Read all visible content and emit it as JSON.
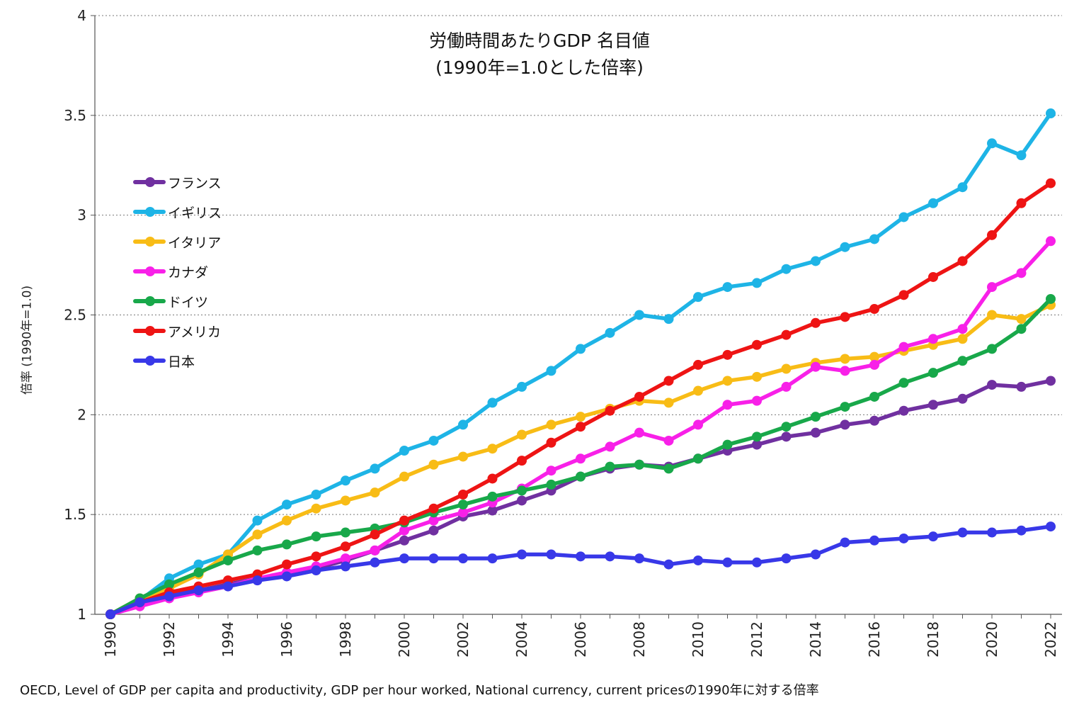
{
  "chart_data": {
    "type": "line",
    "title": "労働時間あたりGDP 名目値",
    "subtitle": "(1990年=1.0とした倍率)",
    "xlabel": "",
    "ylabel": "倍率 (1990年=1.0)",
    "ylim": [
      1,
      4
    ],
    "yticks": [
      "1",
      "1.5",
      "2",
      "2.5",
      "3",
      "3.5",
      "4"
    ],
    "grid": "horizontal dotted",
    "legend_position": "upper-left",
    "x": [
      1990,
      1991,
      1992,
      1993,
      1994,
      1995,
      1996,
      1997,
      1998,
      1999,
      2000,
      2001,
      2002,
      2003,
      2004,
      2005,
      2006,
      2007,
      2008,
      2009,
      2010,
      2011,
      2012,
      2013,
      2014,
      2015,
      2016,
      2017,
      2018,
      2019,
      2020,
      2021,
      2022
    ],
    "xtick_labels": [
      "1990",
      "1992",
      "1994",
      "1996",
      "1998",
      "2000",
      "2002",
      "2004",
      "2006",
      "2008",
      "2010",
      "2012",
      "2014",
      "2016",
      "2018",
      "2020",
      "2022"
    ],
    "series": [
      {
        "name": "フランス",
        "color": "#7030a0",
        "values": [
          1.0,
          1.06,
          1.1,
          1.12,
          1.15,
          1.18,
          1.2,
          1.23,
          1.27,
          1.32,
          1.37,
          1.42,
          1.49,
          1.52,
          1.57,
          1.62,
          1.69,
          1.73,
          1.75,
          1.74,
          1.78,
          1.82,
          1.85,
          1.89,
          1.91,
          1.95,
          1.97,
          2.02,
          2.05,
          2.08,
          2.15,
          2.14,
          2.17
        ]
      },
      {
        "name": "イギリス",
        "color": "#1eb4e6",
        "values": [
          1.0,
          1.07,
          1.18,
          1.25,
          1.3,
          1.47,
          1.55,
          1.6,
          1.67,
          1.73,
          1.82,
          1.87,
          1.95,
          2.06,
          2.14,
          2.22,
          2.33,
          2.41,
          2.5,
          2.48,
          2.59,
          2.64,
          2.66,
          2.73,
          2.77,
          2.84,
          2.88,
          2.99,
          3.06,
          3.14,
          3.36,
          3.3,
          3.51
        ]
      },
      {
        "name": "イタリア",
        "color": "#f8bc16",
        "values": [
          1.0,
          1.08,
          1.13,
          1.2,
          1.3,
          1.4,
          1.47,
          1.53,
          1.57,
          1.61,
          1.69,
          1.75,
          1.79,
          1.83,
          1.9,
          1.95,
          1.99,
          2.03,
          2.07,
          2.06,
          2.12,
          2.17,
          2.19,
          2.23,
          2.26,
          2.28,
          2.29,
          2.32,
          2.35,
          2.38,
          2.5,
          2.48,
          2.55
        ]
      },
      {
        "name": "カナダ",
        "color": "#f820e8",
        "values": [
          1.0,
          1.04,
          1.08,
          1.11,
          1.14,
          1.18,
          1.21,
          1.24,
          1.28,
          1.32,
          1.42,
          1.47,
          1.51,
          1.56,
          1.63,
          1.72,
          1.78,
          1.84,
          1.91,
          1.87,
          1.95,
          2.05,
          2.07,
          2.14,
          2.24,
          2.22,
          2.25,
          2.34,
          2.38,
          2.43,
          2.64,
          2.71,
          2.87
        ]
      },
      {
        "name": "ドイツ",
        "color": "#18a84a",
        "values": [
          1.0,
          1.08,
          1.15,
          1.21,
          1.27,
          1.32,
          1.35,
          1.39,
          1.41,
          1.43,
          1.46,
          1.51,
          1.55,
          1.59,
          1.62,
          1.65,
          1.69,
          1.74,
          1.75,
          1.73,
          1.78,
          1.85,
          1.89,
          1.94,
          1.99,
          2.04,
          2.09,
          2.16,
          2.21,
          2.27,
          2.33,
          2.43,
          2.58
        ]
      },
      {
        "name": "アメリカ",
        "color": "#ee1414",
        "values": [
          1.0,
          1.06,
          1.11,
          1.14,
          1.17,
          1.2,
          1.25,
          1.29,
          1.34,
          1.4,
          1.47,
          1.53,
          1.6,
          1.68,
          1.77,
          1.86,
          1.94,
          2.02,
          2.09,
          2.17,
          2.25,
          2.3,
          2.35,
          2.4,
          2.46,
          2.49,
          2.53,
          2.6,
          2.69,
          2.77,
          2.9,
          3.06,
          3.16
        ]
      },
      {
        "name": "日本",
        "color": "#3838e8",
        "values": [
          1.0,
          1.06,
          1.09,
          1.12,
          1.14,
          1.17,
          1.19,
          1.22,
          1.24,
          1.26,
          1.28,
          1.28,
          1.28,
          1.28,
          1.3,
          1.3,
          1.29,
          1.29,
          1.28,
          1.25,
          1.27,
          1.26,
          1.26,
          1.28,
          1.3,
          1.36,
          1.37,
          1.38,
          1.39,
          1.41,
          1.41,
          1.42,
          1.44
        ]
      }
    ],
    "source": "OECD, Level of GDP per capita and productivity, GDP per hour worked, National currency, current pricesの1990年に対する倍率"
  }
}
